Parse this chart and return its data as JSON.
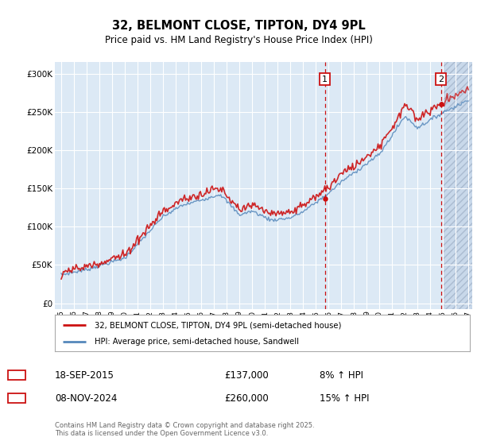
{
  "title": "32, BELMONT CLOSE, TIPTON, DY4 9PL",
  "subtitle": "Price paid vs. HM Land Registry's House Price Index (HPI)",
  "legend_line1": "32, BELMONT CLOSE, TIPTON, DY4 9PL (semi-detached house)",
  "legend_line2": "HPI: Average price, semi-detached house, Sandwell",
  "sale1_date": "18-SEP-2015",
  "sale1_price": 137000,
  "sale1_hpi": "8% ↑ HPI",
  "sale2_date": "08-NOV-2024",
  "sale2_price": 260000,
  "sale2_hpi": "15% ↑ HPI",
  "footnote": "Contains HM Land Registry data © Crown copyright and database right 2025.\nThis data is licensed under the Open Government Licence v3.0.",
  "hpi_color": "#5588bb",
  "price_color": "#cc1111",
  "sale_marker_color": "#cc1111",
  "background_color": "#dce9f5",
  "future_bg_color": "#c8d8ea",
  "hatch_color": "#aabbd0",
  "grid_color": "#ffffff",
  "yticks": [
    0,
    50000,
    100000,
    150000,
    200000,
    250000,
    300000
  ],
  "ylim": [
    -8000,
    315000
  ],
  "xlim_start": 1994.5,
  "xlim_end": 2027.3,
  "sale1_year": 2015.72,
  "sale2_year": 2024.85,
  "future_start": 2025.08
}
